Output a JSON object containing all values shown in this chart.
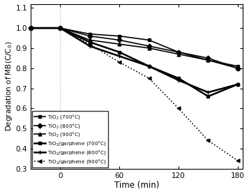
{
  "title": "",
  "xlabel": "Time (min)",
  "ylabel": "Degradation of MB(C/C$_0$)",
  "xlim": [
    -30,
    185
  ],
  "ylim": [
    0.3,
    1.12
  ],
  "xticks": [
    -30,
    0,
    60,
    120,
    180
  ],
  "xticklabels": [
    "",
    "0",
    "60",
    "120",
    "180"
  ],
  "yticks": [
    0.3,
    0.4,
    0.5,
    0.6,
    0.7,
    0.8,
    0.9,
    1.0,
    1.1
  ],
  "series": [
    {
      "label": "TiO$_2$ (700°C)",
      "x": [
        -30,
        0,
        30,
        60,
        90,
        120,
        150,
        180
      ],
      "y": [
        1.0,
        1.0,
        0.97,
        0.96,
        0.94,
        0.88,
        0.84,
        0.81
      ],
      "color": "#000000",
      "linestyle": "-",
      "marker": "s",
      "linewidth": 1.2,
      "markersize": 3.5,
      "markerfacecolor": "#000000"
    },
    {
      "label": "TiO$_2$ (800°C)",
      "x": [
        -30,
        0,
        30,
        60,
        90,
        120,
        150,
        180
      ],
      "y": [
        1.0,
        1.0,
        0.96,
        0.94,
        0.91,
        0.88,
        0.85,
        0.8
      ],
      "color": "#000000",
      "linestyle": "-",
      "marker": "D",
      "linewidth": 1.2,
      "markersize": 3.5,
      "markerfacecolor": "#000000"
    },
    {
      "label": "TiO$_2$ (900°C)",
      "x": [
        -30,
        0,
        30,
        60,
        90,
        120,
        150,
        180
      ],
      "y": [
        1.0,
        1.0,
        0.94,
        0.92,
        0.9,
        0.87,
        0.84,
        0.8
      ],
      "color": "#000000",
      "linestyle": "-",
      "marker": "^",
      "linewidth": 1.2,
      "markersize": 3.5,
      "markerfacecolor": "#000000"
    },
    {
      "label": "TiO$_2$/garphene (700°C)",
      "x": [
        -30,
        0,
        30,
        60,
        90,
        120,
        150,
        180
      ],
      "y": [
        1.0,
        1.0,
        0.93,
        0.88,
        0.81,
        0.75,
        0.66,
        0.72
      ],
      "color": "#000000",
      "linestyle": "-",
      "marker": "s",
      "linewidth": 1.8,
      "markersize": 3.5,
      "markerfacecolor": "#000000"
    },
    {
      "label": "TiO$_2$/garphene (800°C)",
      "x": [
        -30,
        0,
        30,
        60,
        90,
        120,
        150,
        180
      ],
      "y": [
        1.0,
        1.0,
        0.91,
        0.86,
        0.81,
        0.74,
        0.68,
        0.72
      ],
      "color": "#000000",
      "linestyle": "-",
      "marker": "+",
      "linewidth": 1.8,
      "markersize": 5,
      "markerfacecolor": "#000000"
    },
    {
      "label": "TiO$_2$/garphene (900°C)",
      "x": [
        -30,
        0,
        30,
        60,
        90,
        120,
        150,
        180
      ],
      "y": [
        1.0,
        1.0,
        0.92,
        0.83,
        0.75,
        0.6,
        0.44,
        0.34
      ],
      "color": "#000000",
      "linestyle": ":",
      "marker": "<",
      "linewidth": 1.2,
      "markersize": 3.5,
      "markerfacecolor": "#000000"
    }
  ],
  "legend_loc": "lower left",
  "background_color": "#ffffff"
}
